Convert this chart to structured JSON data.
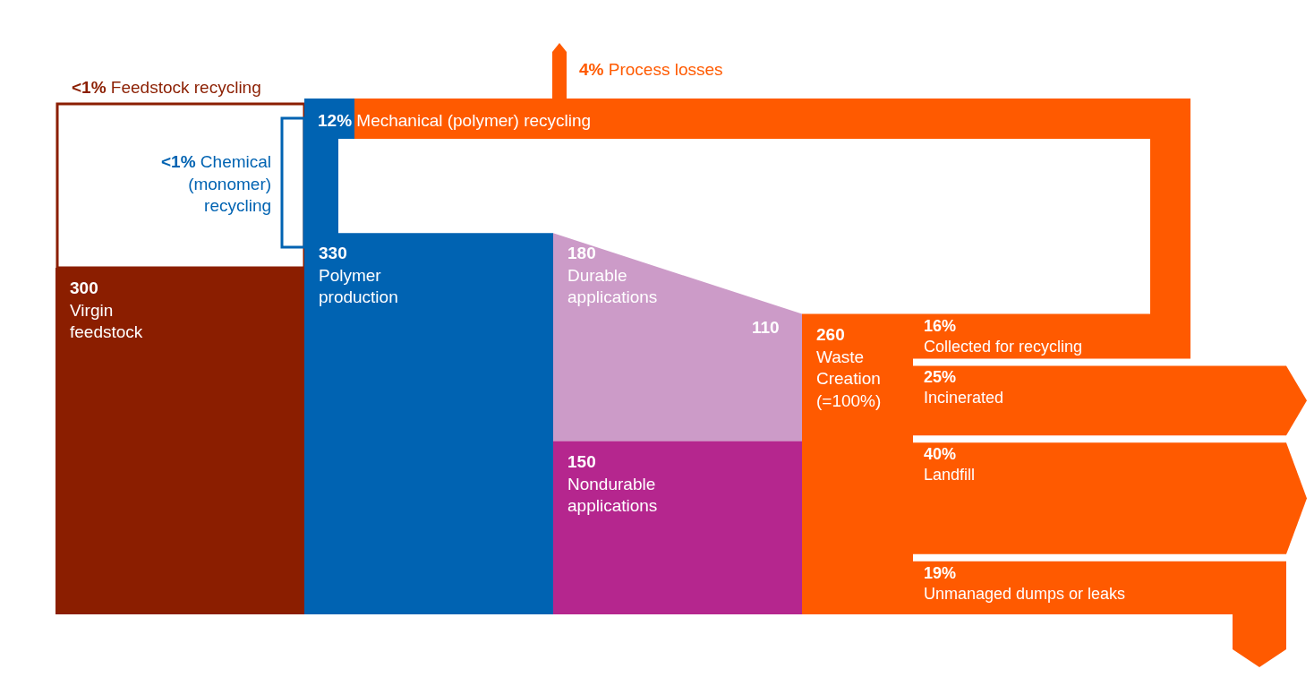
{
  "chart_data": {
    "type": "other",
    "categories": [
      "Virgin feedstock",
      "Polymer production",
      "Durable applications",
      "Nondurable applications",
      "Waste Creation (=100%)",
      "Collected for recycling",
      "Incinerated",
      "Landfill",
      "Unmanaged dumps or leaks"
    ],
    "values": [
      300,
      330,
      180,
      150,
      260,
      16,
      25,
      40,
      19
    ],
    "value_labels": [
      "300",
      "330",
      "180",
      "150",
      "260",
      "16%",
      "25%",
      "40%",
      "19%"
    ],
    "colors": [
      "#8b1e00",
      "#0063b2",
      "#cc9bc8",
      "#b5268e",
      "#ff5a00",
      "#ff5a00",
      "#ff5a00",
      "#ff5a00",
      "#ff5a00"
    ],
    "annotations": [
      "<1% Feedstock recycling",
      "<1% Chemical (monomer) recycling",
      "12% Mechanical (polymer) recycling",
      "4% Process losses",
      "110"
    ]
  }
}
